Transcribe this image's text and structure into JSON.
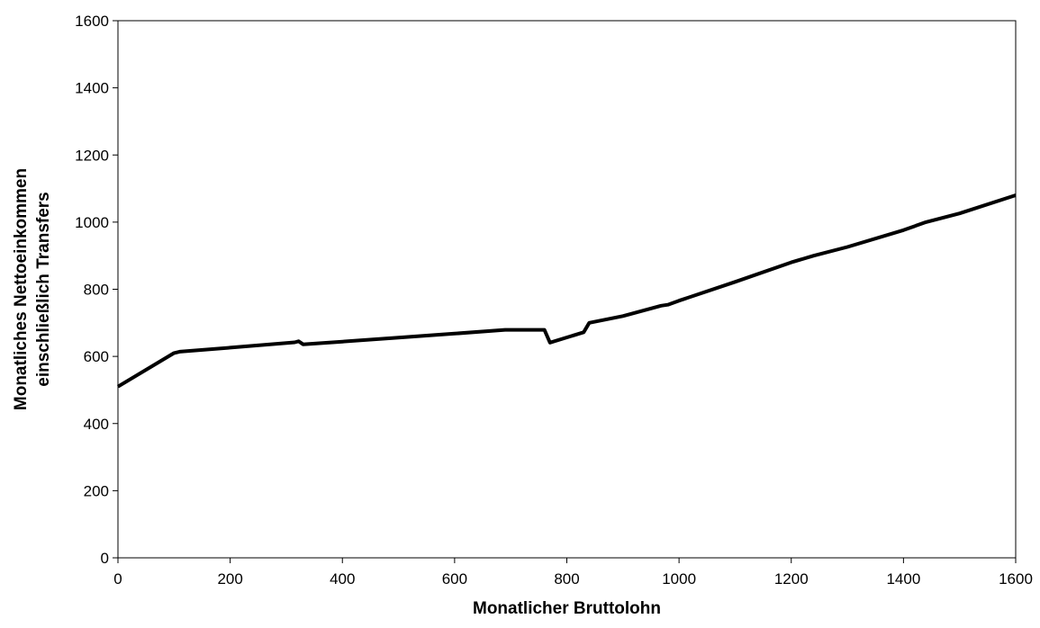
{
  "chart_data": {
    "type": "line",
    "title": "",
    "xlabel": "Monatlicher Bruttolohn",
    "ylabel_lines": [
      "Monatliches Nettoeinkommen",
      "einschließlich Transfers"
    ],
    "xlim": [
      0,
      1600
    ],
    "ylim": [
      0,
      1600
    ],
    "xticks": [
      0,
      200,
      400,
      600,
      800,
      1000,
      1200,
      1400,
      1600
    ],
    "yticks": [
      0,
      200,
      400,
      600,
      800,
      1000,
      1200,
      1400,
      1600
    ],
    "grid": false,
    "legend": "none",
    "line_color": "#000000",
    "series": [
      {
        "x": [
          0,
          100,
          110,
          200,
          315,
          322,
          330,
          400,
          500,
          600,
          690,
          760,
          770,
          830,
          840,
          900,
          968,
          980,
          1000,
          1100,
          1200,
          1240,
          1300,
          1400,
          1440,
          1500,
          1600
        ],
        "y": [
          510,
          610,
          614,
          626,
          642,
          645,
          636,
          644,
          656,
          668,
          679,
          679,
          641,
          672,
          700,
          720,
          751,
          754,
          766,
          822,
          880,
          900,
          926,
          976,
          1000,
          1026,
          1080
        ]
      }
    ]
  }
}
